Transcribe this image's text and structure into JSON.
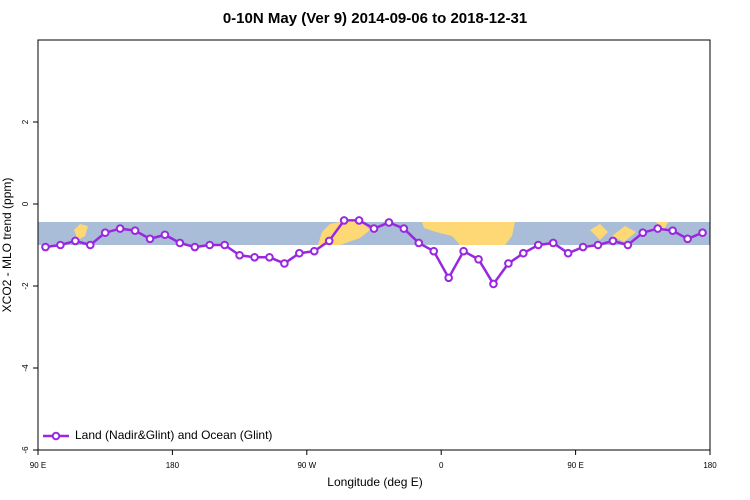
{
  "chart_data": {
    "type": "line",
    "title": "0-10N May (Ver 9)   2014-09-06 to 2018-12-31",
    "xlabel": "Longitude (deg E)",
    "ylabel": "XCO2 - MLO trend (ppm)",
    "x": [
      95,
      105,
      115,
      125,
      135,
      145,
      155,
      165,
      175,
      185,
      195,
      205,
      215,
      225,
      235,
      245,
      255,
      265,
      275,
      285,
      295,
      305,
      315,
      325,
      335,
      345,
      355,
      365,
      375,
      385,
      395,
      405,
      415,
      425,
      435,
      445,
      455,
      465,
      475,
      485,
      495,
      505,
      515,
      525,
      535
    ],
    "series": [
      {
        "name": "Land (Nadir&Glint) and Ocean (Glint)",
        "color": "#9a27e0",
        "values": [
          -1.05,
          -1.0,
          -0.9,
          -1.0,
          -0.7,
          -0.6,
          -0.65,
          -0.85,
          -0.75,
          -0.95,
          -1.05,
          -1.0,
          -1.0,
          -1.25,
          -1.3,
          -1.3,
          -1.45,
          -1.2,
          -1.15,
          -0.9,
          -0.4,
          -0.4,
          -0.6,
          -0.45,
          -0.6,
          -0.95,
          -1.15,
          -1.8,
          -1.15,
          -1.35,
          -1.95,
          -1.45,
          -1.2,
          -1.0,
          -0.95,
          -1.2,
          -1.05,
          -1.0,
          -0.9,
          -1.0,
          -0.7,
          -0.6,
          -0.65,
          -0.85,
          -0.7
        ]
      }
    ],
    "xlim": [
      90,
      540
    ],
    "xticks": [
      {
        "value": 90,
        "label": "90 E"
      },
      180,
      {
        "value": 270,
        "label": "90 W"
      },
      {
        "value": 360,
        "label": "0"
      },
      {
        "value": 450,
        "label": "90 E"
      },
      {
        "value": 540,
        "label": "180"
      }
    ],
    "ylim": [
      -6,
      4
    ],
    "yticks": [
      -6,
      -4,
      -2,
      0,
      2
    ],
    "legend": "bottom-left"
  }
}
